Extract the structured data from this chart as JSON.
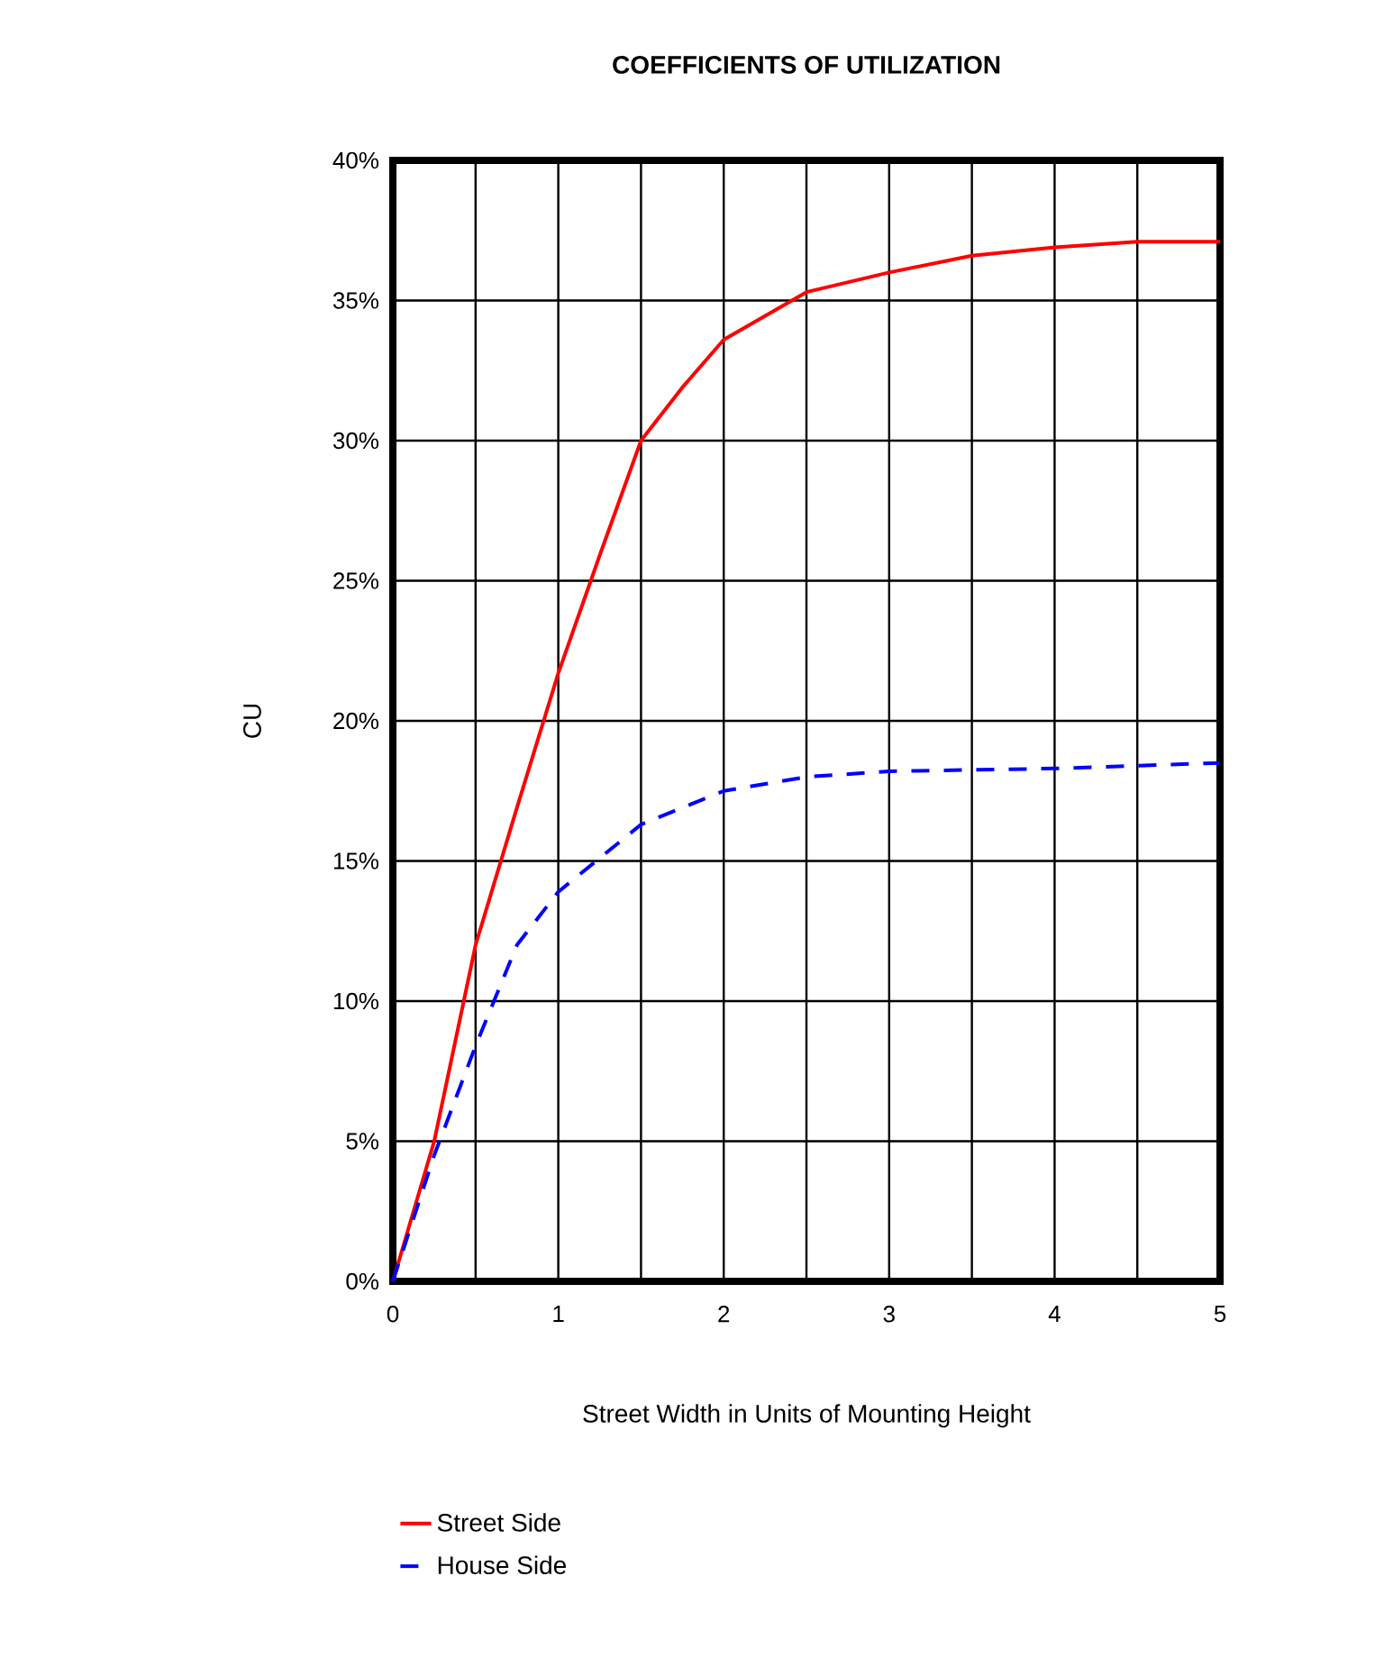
{
  "chart_data": {
    "type": "line",
    "title": "COEFFICIENTS OF UTILIZATION",
    "xlabel": "Street Width in Units of Mounting Height",
    "ylabel": "CU",
    "series": [
      {
        "name": "Street Side",
        "color": "#ff0000",
        "line_style": "solid",
        "x": [
          0,
          0.25,
          0.5,
          0.75,
          1.0,
          1.25,
          1.5,
          1.75,
          2.0,
          2.5,
          3.0,
          3.5,
          4.0,
          4.5,
          5.0
        ],
        "values": [
          0,
          5,
          12,
          16.9,
          21.7,
          25.9,
          30,
          31.9,
          33.6,
          35.3,
          36.0,
          36.6,
          36.9,
          37.1,
          37.1
        ]
      },
      {
        "name": "House Side",
        "color": "#0000ff",
        "line_style": "dashed",
        "x": [
          0,
          0.25,
          0.5,
          0.75,
          1.0,
          1.5,
          2.0,
          2.5,
          3.0,
          4.0,
          5.0
        ],
        "values": [
          0,
          4.5,
          8.4,
          12,
          13.9,
          16.3,
          17.5,
          18.0,
          18.2,
          18.3,
          18.5
        ]
      }
    ],
    "xlim": [
      0,
      5
    ],
    "ylim": [
      0,
      40
    ],
    "xticks": [
      0,
      {
        "value": 0.5,
        "label": null
      },
      1,
      {
        "value": 1.5,
        "label": null
      },
      2,
      {
        "value": 2.5,
        "label": null
      },
      3,
      {
        "value": 3.5,
        "label": null
      },
      4,
      {
        "value": 4.5,
        "label": null
      },
      5
    ],
    "yticks": [
      {
        "value": 0,
        "label": "0%"
      },
      {
        "value": 5,
        "label": "5%"
      },
      {
        "value": 10,
        "label": "10%"
      },
      {
        "value": 15,
        "label": "15%"
      },
      {
        "value": 20,
        "label": "20%"
      },
      {
        "value": 25,
        "label": "25%"
      },
      {
        "value": 30,
        "label": "30%"
      },
      {
        "value": 35,
        "label": "35%"
      },
      {
        "value": 40,
        "label": "40%"
      }
    ],
    "grid": true,
    "legend": "bottom",
    "marker": "none"
  }
}
